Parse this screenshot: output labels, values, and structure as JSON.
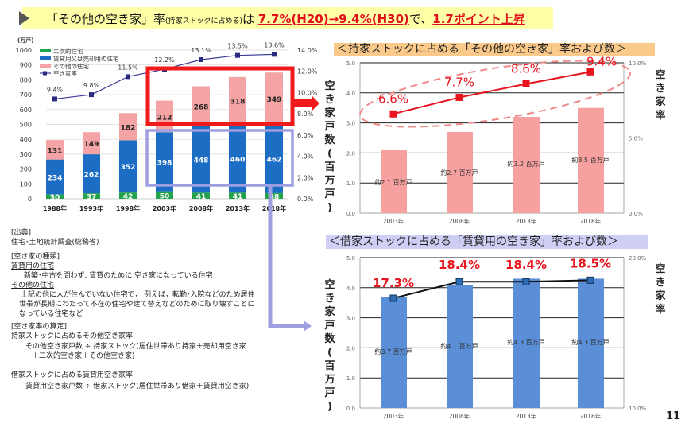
{
  "title": {
    "prefix": "「その他の空き家」率",
    "small": "(持家ストックに占める)",
    "wa": "は ",
    "highlight1": "7.7%(H20)→9.4%(H30)",
    "de": "で、",
    "highlight2": "1.7ポイント上昇"
  },
  "colors": {
    "green": "#22a24a",
    "blue": "#1c6ec4",
    "pink": "#f4a4a4",
    "rate_line": "#3b3b96",
    "red": "#e8141e",
    "red_box": "#f01a1a",
    "purple_box": "#9f9ee0",
    "top_bar": "#f7a0a0",
    "bottom_bar": "#5a8fd8",
    "top_header": "#fbc98a",
    "bottom_header": "#cfcff5"
  },
  "chart_data": [
    {
      "type": "bar",
      "stacked": true,
      "y_unit": "(万戸)",
      "categories": [
        "1988年",
        "1993年",
        "1998年",
        "2003年",
        "2008年",
        "2013年",
        "2018年"
      ],
      "ylim": [
        0,
        1000
      ],
      "yticks": [
        "0",
        "100",
        "200",
        "300",
        "400",
        "500",
        "600",
        "700",
        "800",
        "900",
        "1000"
      ],
      "y2lim": [
        0,
        14
      ],
      "y2ticks": [
        "0.0%",
        "2.0%",
        "4.0%",
        "6.0%",
        "8.0%",
        "10.0%",
        "12.0%",
        "14.0%"
      ],
      "grid": true,
      "legend": "top-left",
      "series": [
        {
          "name": "二次的住宅",
          "values": [
            30,
            37,
            42,
            50,
            41,
            41,
            38
          ],
          "labels": [
            "30",
            "37",
            "42",
            "50",
            "41",
            "41",
            "38"
          ]
        },
        {
          "name": "賃貸用又は売却用の住宅",
          "values": [
            234,
            262,
            352,
            398,
            448,
            460,
            462
          ],
          "labels": [
            "234",
            "262",
            "352",
            "398",
            "448",
            "460",
            "462"
          ]
        },
        {
          "name": "その他の住宅",
          "values": [
            131,
            149,
            182,
            212,
            268,
            318,
            349
          ],
          "labels": [
            "131",
            "149",
            "182",
            "212",
            "268",
            "318",
            "349"
          ]
        },
        {
          "name": "空き家率",
          "type": "line",
          "axis": "right",
          "values": [
            9.4,
            9.8,
            11.5,
            12.2,
            13.1,
            13.5,
            13.6
          ],
          "labels": [
            "9.4%",
            "9.8%",
            "11.5%",
            "12.2%",
            "13.1%",
            "13.5%",
            "13.6%"
          ]
        }
      ]
    },
    {
      "type": "bar",
      "title": "＜持家ストックに占める「その他の空き家」率および数＞",
      "ylabel": "空き家戸数(百万戸)",
      "y2label": "空き家率",
      "categories": [
        "2003年",
        "2008年",
        "2013年",
        "2018年"
      ],
      "ylim": [
        0,
        5
      ],
      "yticks": [
        "0.0",
        "1.0",
        "2.0",
        "3.0",
        "4.0",
        "5.0"
      ],
      "y2lim": [
        0,
        10
      ],
      "y2ticks": [
        "0.0%",
        "5.0%",
        "10.0%"
      ],
      "grid": true,
      "series": [
        {
          "type": "bar",
          "values": [
            2.1,
            2.7,
            3.2,
            3.5
          ],
          "labels": [
            "約2.1 百万戸",
            "約2.7 百万戸",
            "約3.2 百万戸",
            "約3.5 百万戸"
          ]
        },
        {
          "type": "line",
          "axis": "right",
          "values": [
            6.6,
            7.7,
            8.6,
            9.4
          ],
          "labels": [
            "6.6%",
            "7.7%",
            "8.6%",
            "9.4%"
          ]
        }
      ]
    },
    {
      "type": "bar",
      "title": "＜借家ストックに占める「賃貸用の空き家」率および数＞",
      "ylabel": "空き家戸数(百万戸)",
      "y2label": "空き家率",
      "categories": [
        "2003年",
        "2008年",
        "2013年",
        "2018年"
      ],
      "ylim": [
        0,
        5
      ],
      "yticks": [
        "0.0",
        "1.0",
        "2.0",
        "3.0",
        "4.0",
        "5.0"
      ],
      "y2lim": [
        10,
        20
      ],
      "y2ticks": [
        "10.0%",
        "20.0%"
      ],
      "grid": true,
      "series": [
        {
          "type": "bar",
          "values": [
            3.7,
            4.1,
            4.3,
            4.3
          ],
          "labels": [
            "約3.7 百万戸",
            "約4.1 百万戸",
            "約4.3 百万戸",
            "約4.3 百万戸"
          ]
        },
        {
          "type": "line",
          "axis": "right",
          "values": [
            17.3,
            18.4,
            18.4,
            18.5
          ],
          "labels": [
            "17.3%",
            "18.4%",
            "18.4%",
            "18.5%"
          ]
        }
      ]
    }
  ],
  "notes": {
    "source_heading": "[出典]",
    "source": "住宅･土地統計調査(総務省)",
    "types_heading": "[空き家の種類]",
    "rental_term": "賃貸用の住宅",
    "rental_def": "新築･中古を問わず, 賃貸のために 空き家になっている住宅",
    "other_term": "その他の住宅",
    "other_def1": "上記の他に人が住んでいない住宅で， 例えば，転勤･入院などのため居住",
    "other_def2": "世帯が長期にわたって不在の住宅や建て替えなどのために取り壊すことに",
    "other_def3": "なっている住宅など",
    "calc_heading": "[空き家率の算定]",
    "owned_heading": "持家ストックに占めるその他空き家率",
    "owned_formula1": "その他空き家戸数  ÷  持家ストック(居住世帯あり持家＋売却用空き家",
    "owned_formula2": "＋二次的空き家＋その他空き家)",
    "rented_heading": "借家ストックに占める賃貸用空き家率",
    "rented_formula": "賃貸用空き家戸数  ÷  借家ストック(居住世帯あり借家＋賃貸用空き家)"
  },
  "page_number": "11"
}
